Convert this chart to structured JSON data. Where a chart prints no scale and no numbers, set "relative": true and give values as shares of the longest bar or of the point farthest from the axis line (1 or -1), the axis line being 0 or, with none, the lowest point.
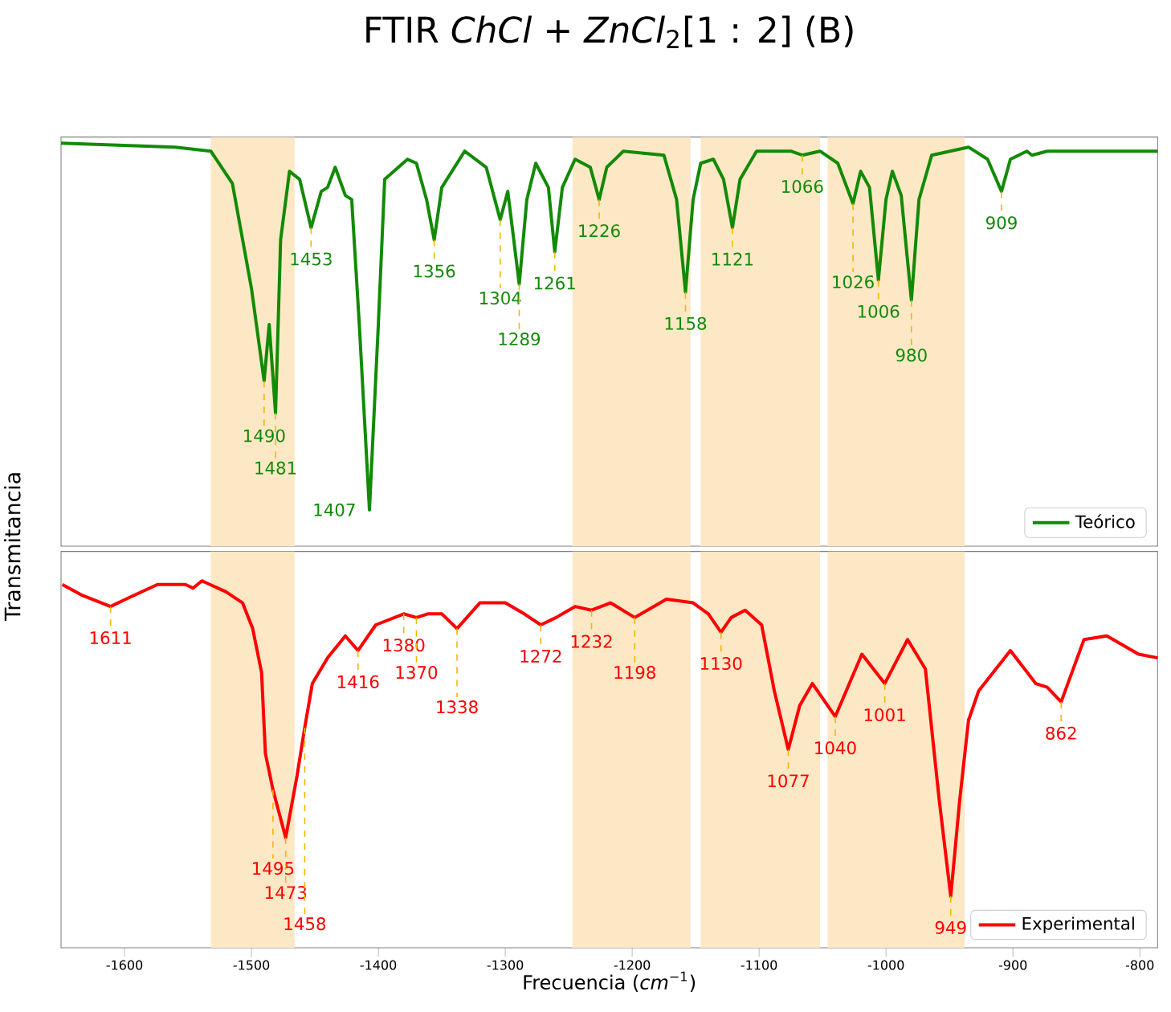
{
  "chart_data": [
    {
      "type": "line",
      "title": "FTIR *ChCl* + *ZnCl*$_{2}$[1 : 2] (B)",
      "ylabel": "Transmitancia",
      "relative": true,
      "tick_labels": false,
      "legend": "bottom right",
      "xlim": [
        -1650,
        -786
      ],
      "xticks": [
        -1600,
        -1500,
        -1400,
        -1300,
        -1200,
        -1100,
        -1000,
        -900,
        -800
      ],
      "bands": [
        {
          "axis": "x",
          "from": -1532,
          "to": -1466,
          "color": "#fde8c6"
        },
        {
          "axis": "x",
          "from": -1247,
          "to": -1154,
          "color": "#fde8c6"
        },
        {
          "axis": "x",
          "from": -1146,
          "to": -1052,
          "color": "#fde8c6"
        },
        {
          "axis": "x",
          "from": -1046,
          "to": -938,
          "color": "#fde8c6"
        }
      ],
      "series": [
        {
          "name": "Teórico",
          "color": "#138a07",
          "x": [
            -1650,
            -1560,
            -1532,
            -1515,
            -1500,
            -1490,
            -1486,
            -1481,
            -1477,
            -1470,
            -1462,
            -1453,
            -1445,
            -1440,
            -1434,
            -1426,
            -1421,
            -1415,
            -1407,
            -1400,
            -1395,
            -1377,
            -1370,
            -1362,
            -1356,
            -1350,
            -1332,
            -1315,
            -1304,
            -1298,
            -1289,
            -1283,
            -1276,
            -1266,
            -1261,
            -1255,
            -1245,
            -1233,
            -1226,
            -1220,
            -1207,
            -1175,
            -1165,
            -1158,
            -1152,
            -1146,
            -1136,
            -1128,
            -1121,
            -1115,
            -1102,
            -1075,
            -1066,
            -1052,
            -1038,
            -1026,
            -1020,
            -1013,
            -1006,
            -1000,
            -995,
            -988,
            -980,
            -974,
            -964,
            -935,
            -920,
            -909,
            -902,
            -889,
            -885,
            -873,
            -786
          ],
          "values": [
            1.0,
            0.99,
            0.98,
            0.9,
            0.64,
            0.41,
            0.55,
            0.33,
            0.76,
            0.93,
            0.91,
            0.79,
            0.88,
            0.89,
            0.94,
            0.87,
            0.86,
            0.55,
            0.09,
            0.55,
            0.91,
            0.96,
            0.95,
            0.86,
            0.76,
            0.89,
            0.98,
            0.94,
            0.81,
            0.88,
            0.65,
            0.86,
            0.95,
            0.89,
            0.73,
            0.89,
            0.96,
            0.94,
            0.86,
            0.94,
            0.98,
            0.97,
            0.86,
            0.63,
            0.86,
            0.95,
            0.96,
            0.91,
            0.79,
            0.91,
            0.98,
            0.98,
            0.97,
            0.98,
            0.95,
            0.85,
            0.93,
            0.89,
            0.66,
            0.86,
            0.93,
            0.87,
            0.61,
            0.86,
            0.97,
            0.99,
            0.96,
            0.88,
            0.96,
            0.98,
            0.97,
            0.98,
            0.98
          ]
        }
      ],
      "annotations": [
        {
          "text": "1490",
          "x": -1490,
          "y": 0.41
        },
        {
          "text": "1481",
          "x": -1481,
          "y": 0.33
        },
        {
          "text": "1453",
          "x": -1453,
          "y": 0.79
        },
        {
          "text": "1407",
          "x": -1407,
          "y": 0.09
        },
        {
          "text": "1356",
          "x": -1356,
          "y": 0.76
        },
        {
          "text": "1304",
          "x": -1304,
          "y": 0.81
        },
        {
          "text": "1289",
          "x": -1289,
          "y": 0.65
        },
        {
          "text": "1261",
          "x": -1261,
          "y": 0.73
        },
        {
          "text": "1226",
          "x": -1226,
          "y": 0.86
        },
        {
          "text": "1158",
          "x": -1158,
          "y": 0.63
        },
        {
          "text": "1121",
          "x": -1121,
          "y": 0.79
        },
        {
          "text": "1066",
          "x": -1066,
          "y": 0.97
        },
        {
          "text": "1026",
          "x": -1026,
          "y": 0.85
        },
        {
          "text": "1006",
          "x": -1006,
          "y": 0.66
        },
        {
          "text": "980",
          "x": -980,
          "y": 0.61
        },
        {
          "text": "909",
          "x": -909,
          "y": 0.88
        }
      ]
    },
    {
      "type": "line",
      "xlabel": "Frecuencia (*cm*$^{−1}$)",
      "relative": true,
      "tick_labels": "x",
      "legend": "bottom right",
      "xlim": [
        -1650,
        -786
      ],
      "xticks": [
        -1600,
        -1500,
        -1400,
        -1300,
        -1200,
        -1100,
        -1000,
        -900,
        -800
      ],
      "bands": [
        {
          "axis": "x",
          "from": -1532,
          "to": -1466,
          "color": "#fde8c6"
        },
        {
          "axis": "x",
          "from": -1247,
          "to": -1154,
          "color": "#fde8c6"
        },
        {
          "axis": "x",
          "from": -1146,
          "to": -1052,
          "color": "#fde8c6"
        },
        {
          "axis": "x",
          "from": -1046,
          "to": -938,
          "color": "#fde8c6"
        }
      ],
      "series": [
        {
          "name": "Experimental",
          "color": "#ff0000",
          "x": [
            -1649,
            -1633,
            -1611,
            -1599,
            -1574,
            -1552,
            -1546,
            -1539,
            -1520,
            -1507,
            -1499,
            -1492,
            -1489,
            -1483,
            -1473,
            -1464,
            -1458,
            -1452,
            -1440,
            -1426,
            -1416,
            -1402,
            -1380,
            -1370,
            -1361,
            -1350,
            -1338,
            -1320,
            -1300,
            -1285,
            -1272,
            -1260,
            -1245,
            -1232,
            -1217,
            -1198,
            -1173,
            -1152,
            -1140,
            -1130,
            -1122,
            -1111,
            -1098,
            -1088,
            -1077,
            -1068,
            -1058,
            -1040,
            -1019,
            -1001,
            -983,
            -969,
            -958,
            -949,
            -942,
            -935,
            -927,
            -902,
            -882,
            -873,
            -862,
            -844,
            -826,
            -801,
            -786
          ],
          "values": [
            0.99,
            0.96,
            0.93,
            0.95,
            0.99,
            0.99,
            0.98,
            1.0,
            0.97,
            0.94,
            0.87,
            0.75,
            0.53,
            0.43,
            0.3,
            0.47,
            0.6,
            0.72,
            0.79,
            0.85,
            0.81,
            0.88,
            0.91,
            0.9,
            0.91,
            0.91,
            0.87,
            0.94,
            0.94,
            0.91,
            0.88,
            0.9,
            0.93,
            0.92,
            0.94,
            0.9,
            0.95,
            0.94,
            0.91,
            0.86,
            0.9,
            0.92,
            0.88,
            0.7,
            0.54,
            0.66,
            0.72,
            0.63,
            0.8,
            0.72,
            0.84,
            0.76,
            0.4,
            0.14,
            0.4,
            0.62,
            0.7,
            0.81,
            0.72,
            0.71,
            0.67,
            0.84,
            0.85,
            0.8,
            0.79
          ]
        }
      ],
      "annotations": [
        {
          "text": "1611",
          "x": -1611,
          "y": 0.93
        },
        {
          "text": "1495",
          "x": -1483,
          "y": 0.43
        },
        {
          "text": "1473",
          "x": -1473,
          "y": 0.3
        },
        {
          "text": "1458",
          "x": -1458,
          "y": 0.6
        },
        {
          "text": "1416",
          "x": -1416,
          "y": 0.81
        },
        {
          "text": "1380",
          "x": -1380,
          "y": 0.91
        },
        {
          "text": "1370",
          "x": -1370,
          "y": 0.9
        },
        {
          "text": "1338",
          "x": -1338,
          "y": 0.87
        },
        {
          "text": "1272",
          "x": -1272,
          "y": 0.88
        },
        {
          "text": "1232",
          "x": -1232,
          "y": 0.92
        },
        {
          "text": "1198",
          "x": -1198,
          "y": 0.9
        },
        {
          "text": "1130",
          "x": -1130,
          "y": 0.86
        },
        {
          "text": "1077",
          "x": -1077,
          "y": 0.54
        },
        {
          "text": "1040",
          "x": -1040,
          "y": 0.63
        },
        {
          "text": "1001",
          "x": -1001,
          "y": 0.72
        },
        {
          "text": "949",
          "x": -949,
          "y": 0.14
        },
        {
          "text": "862",
          "x": -862,
          "y": 0.67
        }
      ]
    }
  ]
}
